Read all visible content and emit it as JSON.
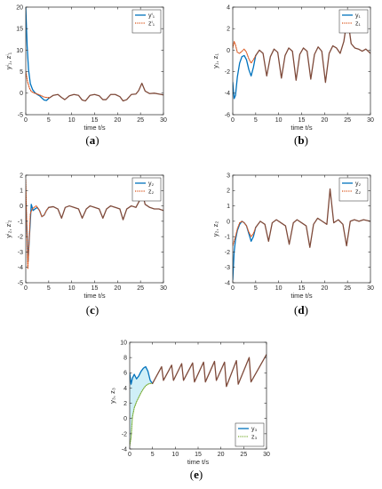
{
  "chart_data": [
    {
      "id": "a",
      "type": "line",
      "caption_letter": "a",
      "xlabel": "time t/s",
      "ylabel": "yⁱ₁, zⁱ₁",
      "xlim": [
        0,
        30
      ],
      "ylim": [
        -5,
        20
      ],
      "xticks": [
        0,
        5,
        10,
        15,
        20,
        25,
        30
      ],
      "yticks": [
        -5,
        0,
        5,
        10,
        15,
        20
      ],
      "legend_position": "top-right",
      "series": [
        {
          "name": "yⁱ₁",
          "color": "#0072BD",
          "style": "solid",
          "x": [
            0,
            0.3,
            0.6,
            1.0,
            1.5,
            2,
            2.5,
            3,
            3.5,
            4,
            4.5,
            5
          ],
          "y": [
            20,
            11,
            5.5,
            2.2,
            0.8,
            0.1,
            -0.3,
            -0.6,
            -1.1,
            -1.6,
            -1.7,
            -1.2
          ]
        },
        {
          "name": "zⁱ₁",
          "color": "#D95319",
          "style": "dotted",
          "x": [
            0,
            0.4,
            0.8,
            1.2,
            1.8,
            2.5,
            3.2,
            4,
            4.5,
            5
          ],
          "y": [
            5,
            2.6,
            1.2,
            0.4,
            0.05,
            -0.2,
            -0.5,
            -0.9,
            -1.0,
            -1.0
          ]
        },
        {
          "name": "",
          "color": "#7E4A3A",
          "style": "solid",
          "x": [
            5,
            6,
            7,
            7.8,
            8.5,
            9.5,
            10.5,
            11.5,
            12.3,
            13,
            14,
            15,
            16,
            16.8,
            17.5,
            18.5,
            19.5,
            20.5,
            21.2,
            22,
            23,
            24,
            24.6,
            25.3,
            26,
            27,
            28,
            29,
            30
          ],
          "y": [
            -1.2,
            -0.5,
            -0.3,
            -1.0,
            -1.5,
            -0.6,
            -0.3,
            -0.5,
            -1.6,
            -1.8,
            -0.5,
            -0.3,
            -0.6,
            -1.5,
            -1.5,
            -0.3,
            -0.3,
            -0.8,
            -1.8,
            -1.5,
            -0.3,
            -0.2,
            0.6,
            2.3,
            0.5,
            -0.1,
            0,
            -0.2,
            -0.4
          ]
        }
      ]
    },
    {
      "id": "b",
      "type": "line",
      "caption_letter": "b",
      "xlabel": "time t/s",
      "ylabel": "y₁, z₁",
      "xlim": [
        0,
        30
      ],
      "ylim": [
        -6,
        4
      ],
      "xticks": [
        0,
        5,
        10,
        15,
        20,
        25,
        30
      ],
      "yticks": [
        -6,
        -4,
        -2,
        0,
        2,
        4
      ],
      "legend_position": "top-right",
      "series": [
        {
          "name": "y₁",
          "color": "#0072BD",
          "style": "solid",
          "x": [
            0,
            0.3,
            0.6,
            1.0,
            1.5,
            2,
            2.5,
            3,
            3.5,
            4,
            4.5,
            5
          ],
          "y": [
            -3,
            -4.5,
            -4.2,
            -2.5,
            -1.2,
            -0.6,
            -0.5,
            -0.9,
            -1.8,
            -2.4,
            -1.6,
            -0.5
          ]
        },
        {
          "name": "z₁",
          "color": "#D95319",
          "style": "dotted",
          "x": [
            0,
            0.3,
            0.6,
            1.0,
            1.5,
            2,
            2.5,
            3,
            3.5,
            4,
            4.5,
            5
          ],
          "y": [
            0.2,
            0.8,
            0.5,
            -0.2,
            -0.3,
            -0.1,
            0.1,
            -0.2,
            -0.8,
            -1.2,
            -0.9,
            -0.5
          ]
        },
        {
          "name": "",
          "color": "#7E4A3A",
          "style": "solid",
          "x": [
            5,
            5.8,
            6.6,
            7.4,
            8.2,
            9,
            9.8,
            10.6,
            11.4,
            12.2,
            13,
            13.8,
            14.6,
            15.4,
            16.2,
            17,
            17.8,
            18.6,
            19.4,
            20.2,
            21,
            21.8,
            22.6,
            23.4,
            24.2,
            25,
            25.8,
            26.6,
            27.4,
            28.2,
            29,
            30
          ],
          "y": [
            -0.5,
            0,
            -0.3,
            -2.4,
            -0.6,
            0.1,
            -0.2,
            -2.6,
            -0.5,
            0.2,
            -0.1,
            -2.8,
            -0.4,
            0.2,
            -0.1,
            -2.7,
            -0.4,
            0.3,
            -0.1,
            -3.0,
            -0.3,
            0.4,
            0.2,
            -0.3,
            0.8,
            3.1,
            0.6,
            0.2,
            0.1,
            -0.1,
            0.1,
            -0.3
          ]
        }
      ]
    },
    {
      "id": "c",
      "type": "line",
      "caption_letter": "c",
      "xlabel": "time t/s",
      "ylabel": "yⁱ₂, zⁱ₂",
      "xlim": [
        0,
        30
      ],
      "ylim": [
        -5,
        2
      ],
      "xticks": [
        0,
        5,
        10,
        15,
        20,
        25,
        30
      ],
      "yticks": [
        -5,
        -4,
        -3,
        -2,
        -1,
        0,
        1,
        2
      ],
      "legend_position": "top-right",
      "series": [
        {
          "name": "y₂",
          "color": "#0072BD",
          "style": "solid",
          "x": [
            0,
            0.25,
            0.5,
            0.8,
            1.2,
            1.6,
            2,
            2.5,
            3,
            3.5,
            4,
            4.5,
            5
          ],
          "y": [
            0.2,
            -1.5,
            -3.6,
            -2.0,
            0.1,
            -0.3,
            -0.2,
            -0.1,
            -0.3,
            -0.7,
            -0.6,
            -0.3,
            -0.1
          ]
        },
        {
          "name": "z₂",
          "color": "#D95319",
          "style": "dotted",
          "x": [
            0,
            0.2,
            0.45,
            0.7,
            1.0,
            1.4,
            1.8,
            2.3,
            3,
            3.5,
            4,
            4.5,
            5
          ],
          "y": [
            1.7,
            -1.0,
            -4.1,
            -2.5,
            -0.5,
            -0.2,
            -0.1,
            0,
            -0.3,
            -0.7,
            -0.6,
            -0.3,
            -0.1
          ]
        },
        {
          "name": "",
          "color": "#7E4A3A",
          "style": "solid",
          "x": [
            5,
            6,
            7,
            7.8,
            8.6,
            9.5,
            10.5,
            11.5,
            12.3,
            13.2,
            14,
            15,
            16,
            16.8,
            17.6,
            18.5,
            19.5,
            20.5,
            21.2,
            22,
            23,
            24,
            24.7,
            25.3,
            26,
            27,
            28,
            29,
            30
          ],
          "y": [
            -0.1,
            -0.05,
            -0.2,
            -0.8,
            -0.1,
            0,
            -0.1,
            -0.2,
            -0.8,
            -0.2,
            0,
            -0.1,
            -0.2,
            -0.8,
            -0.2,
            0,
            -0.1,
            -0.2,
            -0.9,
            -0.2,
            0,
            -0.1,
            0.3,
            1.0,
            0.1,
            -0.1,
            -0.2,
            -0.2,
            -0.3
          ]
        }
      ]
    },
    {
      "id": "d",
      "type": "line",
      "caption_letter": "d",
      "xlabel": "time t/s",
      "ylabel": "y₂, z₂",
      "xlim": [
        0,
        30
      ],
      "ylim": [
        -4,
        3
      ],
      "xticks": [
        0,
        5,
        10,
        15,
        20,
        25,
        30
      ],
      "yticks": [
        -4,
        -3,
        -2,
        -1,
        0,
        1,
        2,
        3
      ],
      "legend_position": "top-right",
      "series": [
        {
          "name": "y₂",
          "color": "#0072BD",
          "style": "solid",
          "x": [
            0,
            0.3,
            0.6,
            1.0,
            1.5,
            2,
            2.5,
            3,
            3.5,
            4,
            4.5,
            5
          ],
          "y": [
            -3.8,
            -2.0,
            -1.2,
            -0.6,
            -0.2,
            0,
            -0.1,
            -0.3,
            -0.8,
            -1.3,
            -1.0,
            -0.4
          ]
        },
        {
          "name": "z₂",
          "color": "#D95319",
          "style": "dotted",
          "x": [
            0,
            0.3,
            0.6,
            1.0,
            1.5,
            2,
            2.5,
            3,
            3.5,
            4,
            4.5,
            5
          ],
          "y": [
            -1.6,
            -1.3,
            -1.0,
            -0.5,
            -0.1,
            0,
            -0.1,
            -0.3,
            -0.7,
            -1.0,
            -0.8,
            -0.4
          ]
        },
        {
          "name": "",
          "color": "#7E4A3A",
          "style": "solid",
          "x": [
            5,
            6,
            7,
            7.8,
            8.6,
            9.5,
            10.5,
            11.5,
            12.3,
            13.2,
            14,
            15,
            16,
            16.8,
            17.6,
            18.5,
            19.5,
            20.5,
            21.2,
            22,
            23,
            24,
            24.8,
            25.6,
            26.5,
            27.5,
            28.5,
            30
          ],
          "y": [
            -0.4,
            0,
            -0.2,
            -1.3,
            -0.1,
            0.1,
            -0.1,
            -0.3,
            -1.5,
            -0.1,
            0.1,
            -0.1,
            -0.3,
            -1.7,
            -0.2,
            0.2,
            0,
            -0.2,
            2.1,
            -0.1,
            0.1,
            -0.2,
            -1.6,
            0,
            0.1,
            0,
            0.1,
            0
          ]
        }
      ]
    },
    {
      "id": "e",
      "type": "line",
      "caption_letter": "e",
      "xlabel": "time t/s",
      "ylabel": "y₃, z₃",
      "xlim": [
        0,
        30
      ],
      "ylim": [
        -4,
        10
      ],
      "xticks": [
        0,
        5,
        10,
        15,
        20,
        25,
        30
      ],
      "yticks": [
        -4,
        -2,
        0,
        2,
        4,
        6,
        8,
        10
      ],
      "legend_position": "bottom-right",
      "shaded_region": {
        "color": "#CFEFF7",
        "between": [
          "y₃",
          "z₃"
        ]
      },
      "series": [
        {
          "name": "y₃",
          "color": "#0072BD",
          "style": "solid",
          "x": [
            0,
            0.3,
            0.6,
            1.0,
            1.5,
            2,
            2.5,
            3,
            3.5,
            4,
            4.5,
            5
          ],
          "y": [
            6.0,
            4.5,
            5.3,
            5.8,
            5.2,
            5.6,
            6.2,
            6.6,
            6.8,
            6.2,
            5.0,
            4.6
          ]
        },
        {
          "name": "z₃",
          "color": "#77AC30",
          "style": "dotted",
          "x": [
            0,
            0.3,
            0.6,
            1.0,
            1.5,
            2,
            2.5,
            3,
            3.5,
            4,
            4.5,
            5
          ],
          "y": [
            -3.6,
            -2.5,
            0.2,
            1.4,
            2.2,
            2.8,
            3.4,
            3.9,
            4.3,
            4.5,
            4.6,
            4.6
          ]
        },
        {
          "name": "",
          "color": "#7E4A3A",
          "style": "solid",
          "x": [
            5,
            7,
            7.4,
            9.2,
            9.6,
            11.4,
            11.8,
            13.8,
            14.2,
            16.2,
            16.6,
            18.6,
            19,
            20.8,
            21.2,
            23.4,
            23.8,
            26.2,
            26.6,
            30
          ],
          "y": [
            4.6,
            6.8,
            5.0,
            7.0,
            5.0,
            7.2,
            5.0,
            7.3,
            4.8,
            7.4,
            4.8,
            7.5,
            5.0,
            7.4,
            4.2,
            7.6,
            4.5,
            8.0,
            4.8,
            8.4
          ]
        }
      ]
    }
  ]
}
